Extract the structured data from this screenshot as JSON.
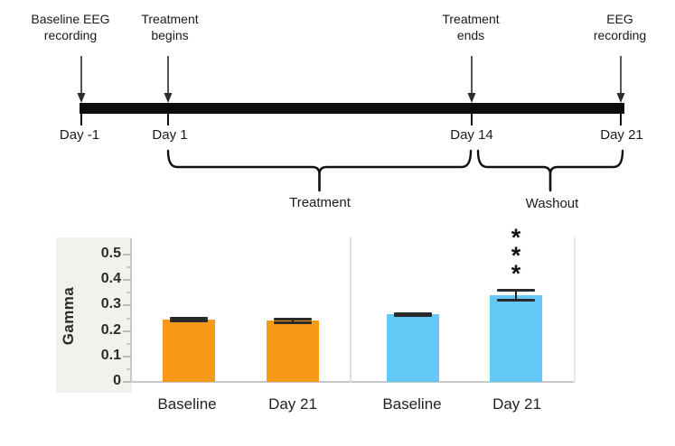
{
  "timeline": {
    "events": [
      {
        "label": "Baseline EEG\nrecording",
        "day": "Day -1"
      },
      {
        "label": "Treatment\nbegins",
        "day": "Day 1"
      },
      {
        "label": "Treatment\nends",
        "day": "Day 14"
      },
      {
        "label": "EEG\nrecording",
        "day": "Day 21"
      }
    ],
    "phases": [
      {
        "label": "Treatment"
      },
      {
        "label": "Washout"
      }
    ]
  },
  "chart_data": {
    "type": "bar",
    "title": "",
    "xlabel": "",
    "ylabel": "Gamma",
    "ylim": [
      0,
      0.5
    ],
    "yticks": [
      0,
      0.1,
      0.2,
      0.3,
      0.4,
      0.5
    ],
    "grid": false,
    "legend": false,
    "categories": [
      "Baseline",
      "Day 21"
    ],
    "series": [
      {
        "name": "left-panel",
        "color": "#F89A18",
        "values": [
          0.245,
          0.24
        ],
        "errors": [
          0.006,
          0.008
        ],
        "significance": [
          "",
          ""
        ]
      },
      {
        "name": "right-panel",
        "color": "#63C9F7",
        "values": [
          0.265,
          0.34
        ],
        "errors": [
          0.006,
          0.02
        ],
        "significance": [
          "",
          "***"
        ]
      }
    ]
  },
  "colors": {
    "timeline_bar": "#0c0c0c",
    "axis_line": "#C8C8C8",
    "axis_panel_bg": "#F2F1EC",
    "error_bar": "#1f1f1f"
  }
}
